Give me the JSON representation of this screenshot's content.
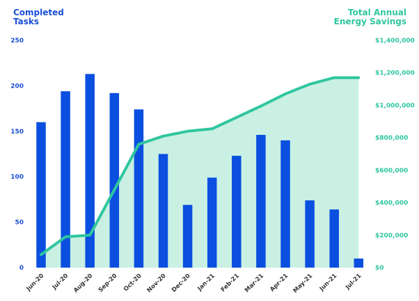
{
  "chart_data": {
    "type": "bar+line",
    "left_axis_title_line1": "Completed",
    "left_axis_title_line2": "Tasks",
    "right_axis_title_line1": "Total Annual",
    "right_axis_title_line2": "Energy Savings",
    "categories": [
      "Jun-20",
      "Jul-20",
      "Aug-20",
      "Sep-20",
      "Oct-20",
      "Nov-20",
      "Dec-20",
      "Jan-21",
      "Feb-21",
      "Mar-21",
      "Apr-21",
      "May-21",
      "Jun-21",
      "Jul-21"
    ],
    "series": [
      {
        "axis": "left",
        "type": "bar",
        "color": "#0b4fe0",
        "values": [
          160,
          194,
          213,
          192,
          174,
          125,
          69,
          99,
          123,
          146,
          140,
          74,
          64,
          10
        ]
      },
      {
        "axis": "right",
        "type": "line-area",
        "color": "#2fc6a0",
        "fill": "#c9f0e3",
        "values": [
          80000,
          190000,
          200000,
          480000,
          760000,
          810000,
          840000,
          855000,
          925000,
          995000,
          1070000,
          1130000,
          1170000,
          1170000
        ]
      }
    ],
    "ylim_left": [
      0,
      250
    ],
    "yticks_left": [
      "0",
      "50",
      "100",
      "150",
      "200",
      "250"
    ],
    "ylim_right": [
      0,
      1400000
    ],
    "yticks_right": [
      "$0",
      "$200,000",
      "$400,000",
      "$600,000",
      "$800,000",
      "$1,000,000",
      "$1,200,000",
      "$1,400,000"
    ],
    "grid": false,
    "legend": "none"
  }
}
